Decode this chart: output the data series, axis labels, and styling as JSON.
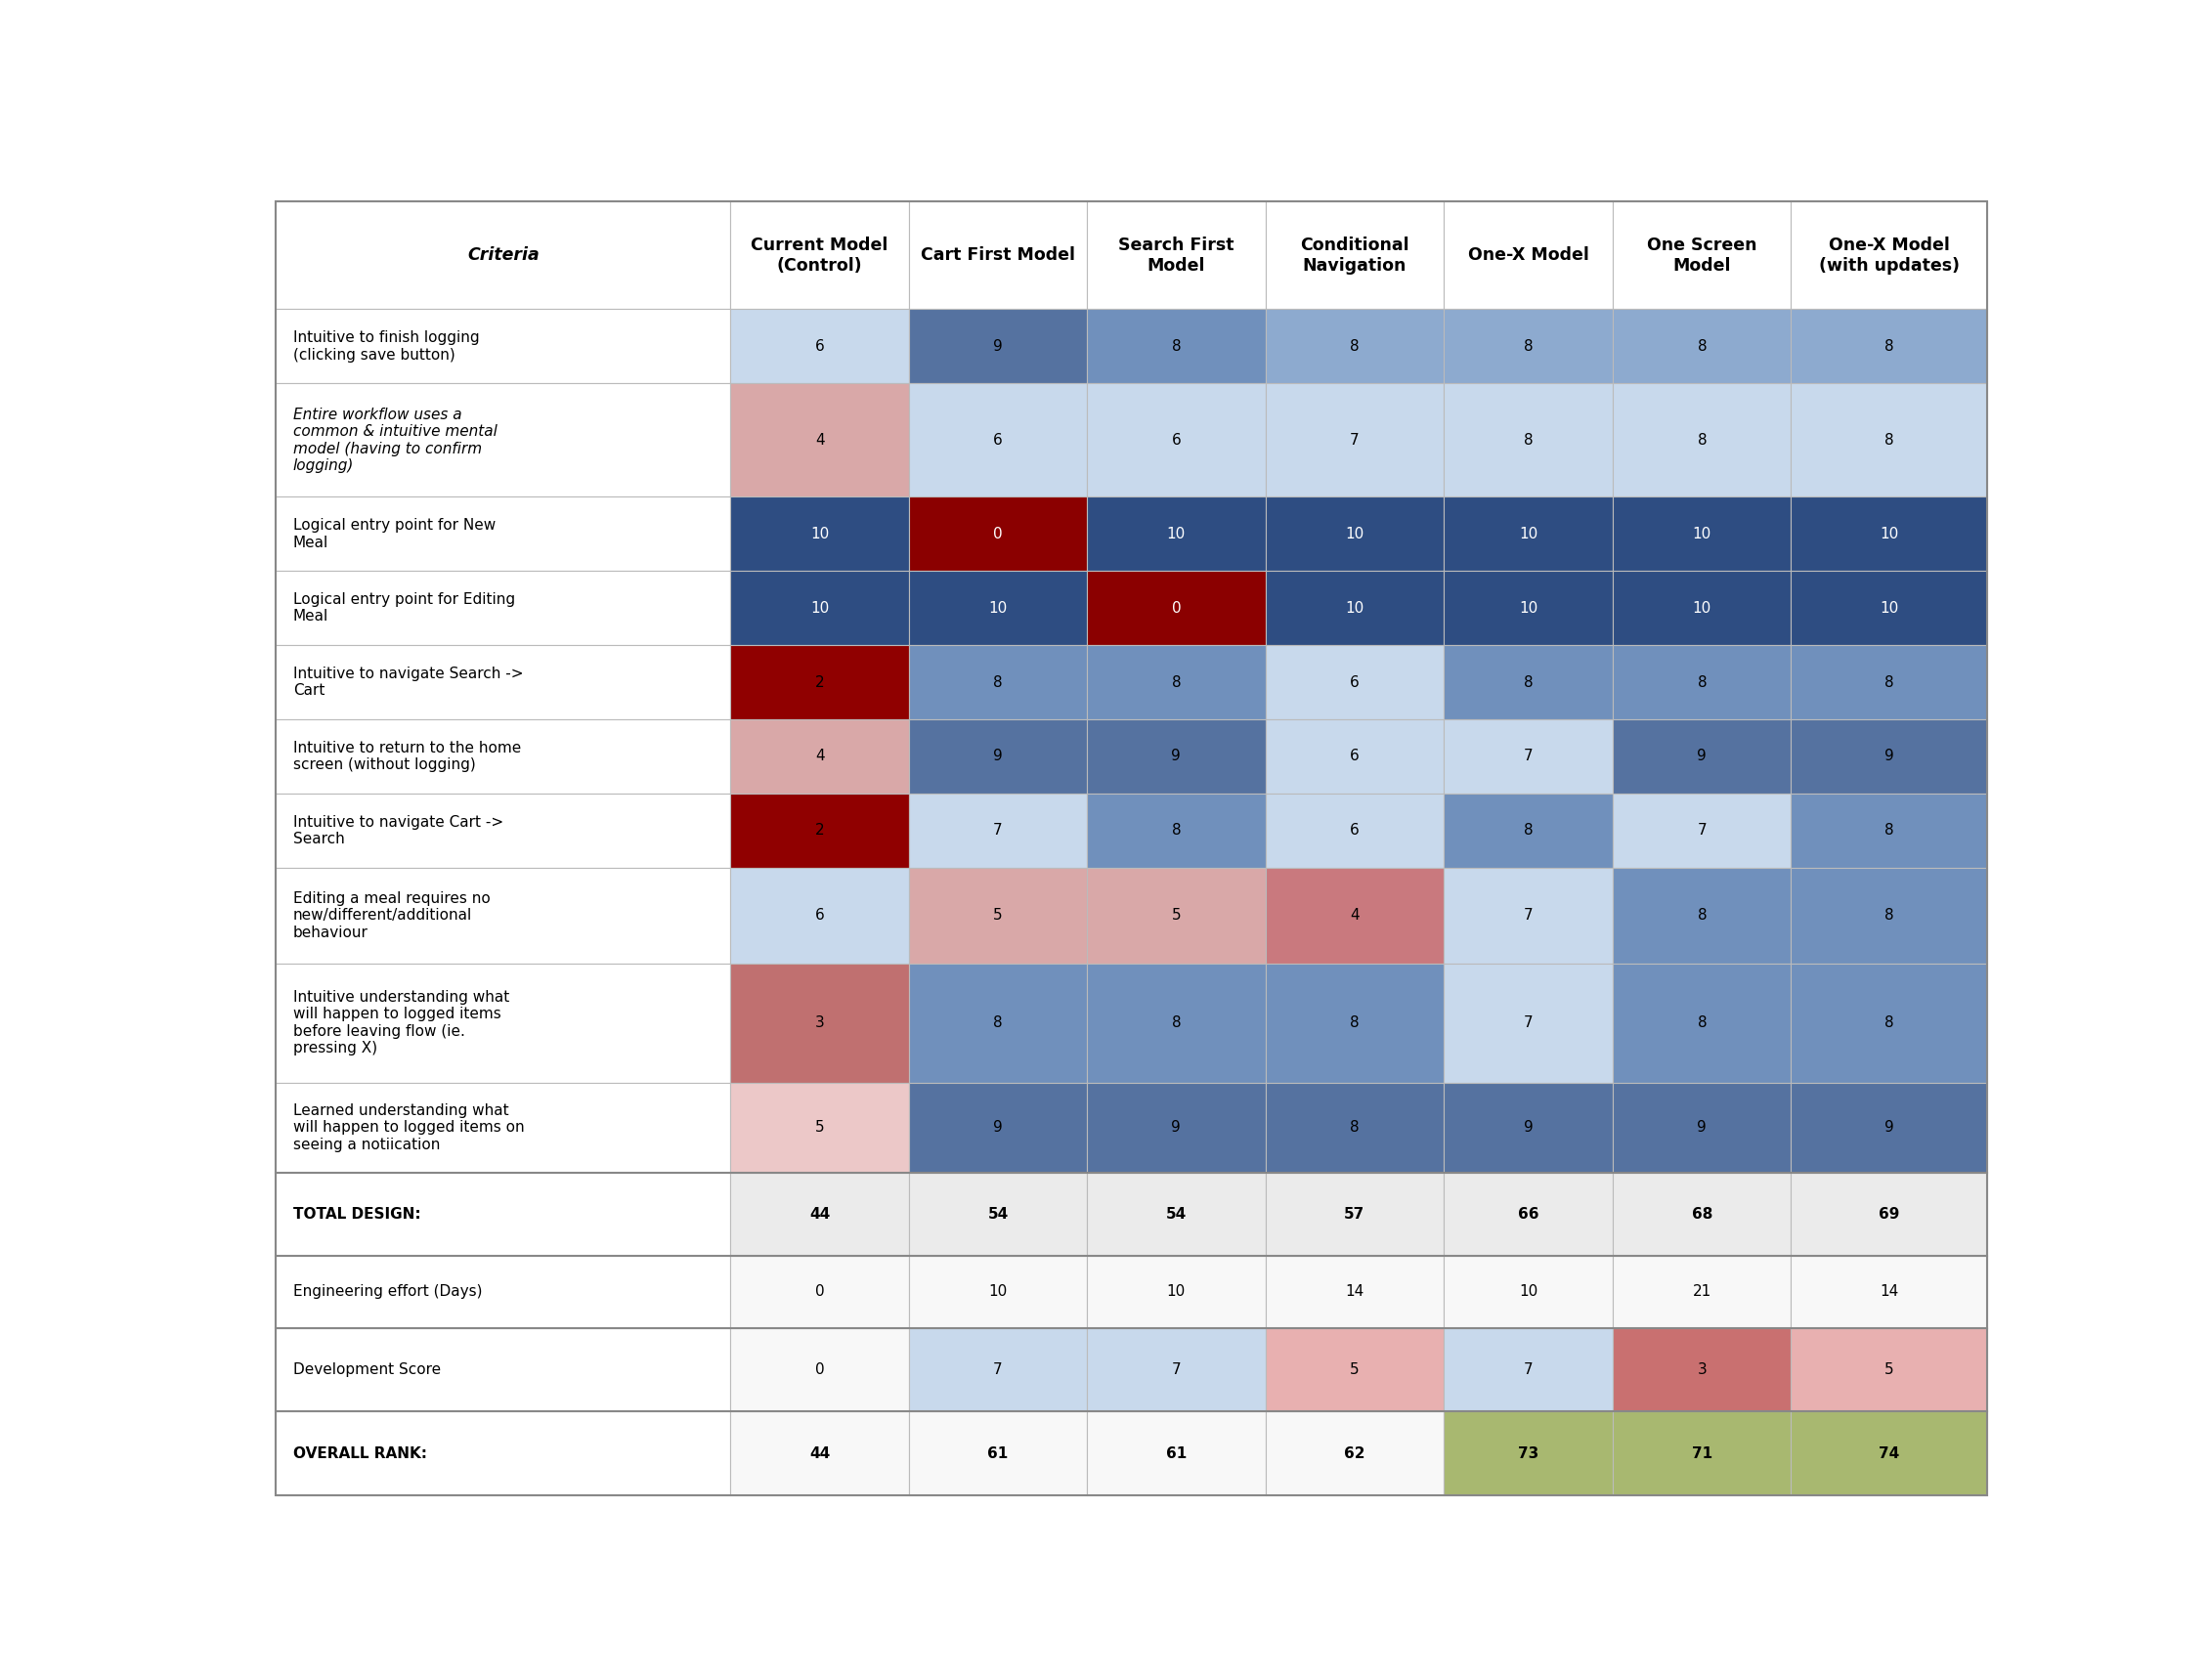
{
  "columns": [
    "Criteria",
    "Current Model\n(Control)",
    "Cart First Model",
    "Search First\nModel",
    "Conditional\nNavigation",
    "One-X Model",
    "One Screen\nModel",
    "One-X Model\n(with updates)"
  ],
  "rows": [
    {
      "label": "Intuitive to finish logging\n(clicking save button)",
      "italic": false,
      "values": [
        6,
        9,
        8,
        8,
        8,
        8,
        8
      ],
      "colors": [
        "#c8d9ec",
        "#5572a0",
        "#7090bc",
        "#8daacf",
        "#8daacf",
        "#8daacf",
        "#8daacf"
      ],
      "text_colors": [
        "#000000",
        "#000000",
        "#000000",
        "#000000",
        "#000000",
        "#000000",
        "#000000"
      ]
    },
    {
      "label": "Entire workflow uses a\ncommon & intuitive mental\nmodel (having to confirm\nlogging)",
      "italic": true,
      "values": [
        4,
        6,
        6,
        7,
        8,
        8,
        8
      ],
      "colors": [
        "#d9a8a8",
        "#c8d9ec",
        "#c8d9ec",
        "#c8d9ec",
        "#c8d9ec",
        "#c8d9ec",
        "#c8d9ec"
      ],
      "text_colors": [
        "#000000",
        "#000000",
        "#000000",
        "#000000",
        "#000000",
        "#000000",
        "#000000"
      ]
    },
    {
      "label": "Logical entry point for New\nMeal",
      "italic": false,
      "values": [
        10,
        0,
        10,
        10,
        10,
        10,
        10
      ],
      "colors": [
        "#2e4d82",
        "#8b0000",
        "#2e4d82",
        "#2e4d82",
        "#2e4d82",
        "#2e4d82",
        "#2e4d82"
      ],
      "text_colors": [
        "#ffffff",
        "#ffffff",
        "#ffffff",
        "#ffffff",
        "#ffffff",
        "#ffffff",
        "#ffffff"
      ]
    },
    {
      "label": "Logical entry point for Editing\nMeal",
      "italic": false,
      "values": [
        10,
        10,
        0,
        10,
        10,
        10,
        10
      ],
      "colors": [
        "#2e4d82",
        "#2e4d82",
        "#8b0000",
        "#2e4d82",
        "#2e4d82",
        "#2e4d82",
        "#2e4d82"
      ],
      "text_colors": [
        "#ffffff",
        "#ffffff",
        "#ffffff",
        "#ffffff",
        "#ffffff",
        "#ffffff",
        "#ffffff"
      ]
    },
    {
      "label": "Intuitive to navigate Search ->\nCart",
      "italic": false,
      "values": [
        2,
        8,
        8,
        6,
        8,
        8,
        8
      ],
      "colors": [
        "#900000",
        "#7090bc",
        "#7090bc",
        "#c8d9ec",
        "#7090bc",
        "#7090bc",
        "#7090bc"
      ],
      "text_colors": [
        "#000000",
        "#000000",
        "#000000",
        "#000000",
        "#000000",
        "#000000",
        "#000000"
      ]
    },
    {
      "label": "Intuitive to return to the home\nscreen (without logging)",
      "italic": false,
      "values": [
        4,
        9,
        9,
        6,
        7,
        9,
        9
      ],
      "colors": [
        "#d9a8a8",
        "#5572a0",
        "#5572a0",
        "#c8d9ec",
        "#c8d9ec",
        "#5572a0",
        "#5572a0"
      ],
      "text_colors": [
        "#000000",
        "#000000",
        "#000000",
        "#000000",
        "#000000",
        "#000000",
        "#000000"
      ]
    },
    {
      "label": "Intuitive to navigate Cart ->\nSearch",
      "italic": false,
      "values": [
        2,
        7,
        8,
        6,
        8,
        7,
        8
      ],
      "colors": [
        "#900000",
        "#c8d9ec",
        "#7090bc",
        "#c8d9ec",
        "#7090bc",
        "#c8d9ec",
        "#7090bc"
      ],
      "text_colors": [
        "#000000",
        "#000000",
        "#000000",
        "#000000",
        "#000000",
        "#000000",
        "#000000"
      ]
    },
    {
      "label": "Editing a meal requires no\nnew/different/additional\nbehaviour",
      "italic": false,
      "values": [
        6,
        5,
        5,
        4,
        7,
        8,
        8
      ],
      "colors": [
        "#c8d9ec",
        "#d9a8a8",
        "#d9a8a8",
        "#c9797e",
        "#c8d9ec",
        "#7090bc",
        "#7090bc"
      ],
      "text_colors": [
        "#000000",
        "#000000",
        "#000000",
        "#000000",
        "#000000",
        "#000000",
        "#000000"
      ]
    },
    {
      "label": "Intuitive understanding what\nwill happen to logged items\nbefore leaving flow (ie.\npressing X)",
      "italic": false,
      "values": [
        3,
        8,
        8,
        8,
        7,
        8,
        8
      ],
      "colors": [
        "#c07070",
        "#7090bc",
        "#7090bc",
        "#7090bc",
        "#c8d9ec",
        "#7090bc",
        "#7090bc"
      ],
      "text_colors": [
        "#000000",
        "#000000",
        "#000000",
        "#000000",
        "#000000",
        "#000000",
        "#000000"
      ]
    },
    {
      "label": "Learned understanding what\nwill happen to logged items on\nseeing a notiication",
      "italic": false,
      "values": [
        5,
        9,
        9,
        8,
        9,
        9,
        9
      ],
      "colors": [
        "#ecc8c8",
        "#5572a0",
        "#5572a0",
        "#5572a0",
        "#5572a0",
        "#5572a0",
        "#5572a0"
      ],
      "text_colors": [
        "#000000",
        "#000000",
        "#000000",
        "#000000",
        "#000000",
        "#000000",
        "#000000"
      ]
    },
    {
      "label": "TOTAL DESIGN:",
      "italic": false,
      "values": [
        44,
        54,
        54,
        57,
        66,
        68,
        69
      ],
      "colors": [
        "#ebebeb",
        "#ebebeb",
        "#ebebeb",
        "#ebebeb",
        "#ebebeb",
        "#ebebeb",
        "#ebebeb"
      ],
      "text_colors": [
        "#000000",
        "#000000",
        "#000000",
        "#000000",
        "#000000",
        "#000000",
        "#000000"
      ],
      "bold": true,
      "separator_above": true
    },
    {
      "label": "Engineering effort (Days)",
      "italic": false,
      "values": [
        0,
        10,
        10,
        14,
        10,
        21,
        14
      ],
      "colors": [
        "#f8f8f8",
        "#f8f8f8",
        "#f8f8f8",
        "#f8f8f8",
        "#f8f8f8",
        "#f8f8f8",
        "#f8f8f8"
      ],
      "text_colors": [
        "#000000",
        "#000000",
        "#000000",
        "#000000",
        "#000000",
        "#000000",
        "#000000"
      ],
      "separator_above": true
    },
    {
      "label": "Development Score",
      "italic": false,
      "values": [
        0,
        7,
        7,
        5,
        7,
        3,
        5
      ],
      "colors": [
        "#f8f8f8",
        "#c8d9ec",
        "#c8d9ec",
        "#e8b0b0",
        "#c8d9ec",
        "#c97070",
        "#e8b0b0"
      ],
      "text_colors": [
        "#000000",
        "#000000",
        "#000000",
        "#000000",
        "#000000",
        "#000000",
        "#000000"
      ],
      "separator_above": true
    },
    {
      "label": "OVERALL RANK:",
      "italic": false,
      "values": [
        44,
        61,
        61,
        62,
        73,
        71,
        74
      ],
      "colors": [
        "#f8f8f8",
        "#f8f8f8",
        "#f8f8f8",
        "#f8f8f8",
        "#a8b870",
        "#a8b870",
        "#a8b870"
      ],
      "text_colors": [
        "#000000",
        "#000000",
        "#000000",
        "#000000",
        "#000000",
        "#000000",
        "#000000"
      ],
      "bold": true,
      "separator_above": true
    }
  ],
  "grid_color": "#bbbbbb",
  "background": "#ffffff"
}
